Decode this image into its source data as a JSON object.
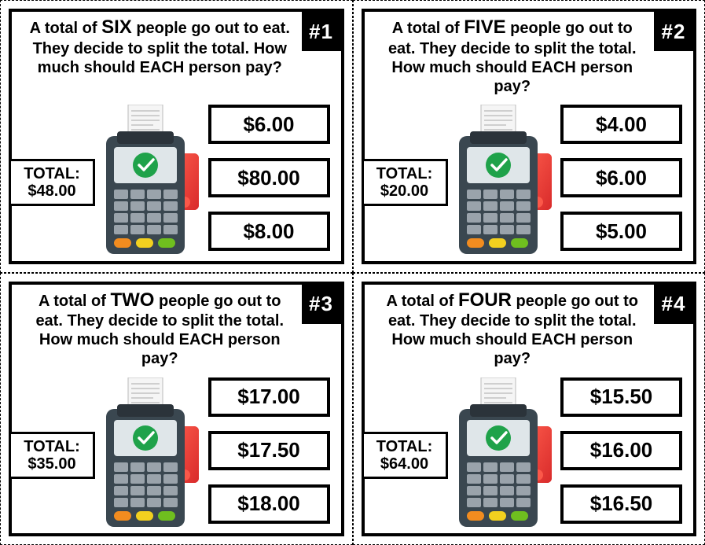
{
  "cards": [
    {
      "num": "#1",
      "q_pre": "A total of ",
      "q_em": "SIX",
      "q_post": " people go out to eat. They decide to split the total. How much should EACH person pay?",
      "total_label": "TOTAL:",
      "total_value": "$48.00",
      "answers": [
        "$6.00",
        "$80.00",
        "$8.00"
      ]
    },
    {
      "num": "#2",
      "q_pre": "A total of ",
      "q_em": "FIVE",
      "q_post": " people go out to eat. They decide to split the total. How much should EACH person pay?",
      "total_label": "TOTAL:",
      "total_value": "$20.00",
      "answers": [
        "$4.00",
        "$6.00",
        "$5.00"
      ]
    },
    {
      "num": "#3",
      "q_pre": "A total of ",
      "q_em": "TWO",
      "q_post": " people go out to eat. They decide to split the total. How much should EACH person pay?",
      "total_label": "TOTAL:",
      "total_value": "$35.00",
      "answers": [
        "$17.00",
        "$17.50",
        "$18.00"
      ]
    },
    {
      "num": "#4",
      "q_pre": "A total of ",
      "q_em": "FOUR",
      "q_post": " people go out to eat. They decide to split the total. How much should EACH person pay?",
      "total_label": "TOTAL:",
      "total_value": "$64.00",
      "answers": [
        "$15.50",
        "$16.00",
        "$16.50"
      ]
    }
  ],
  "colors": {
    "border": "#000000",
    "bg": "#ffffff",
    "terminal_body": "#3a4750",
    "terminal_screen": "#dfe6e9",
    "check_green": "#1fa24a",
    "card_red1": "#ff5e4d",
    "card_red2": "#d92b2b",
    "btn_orange": "#f28c1f",
    "btn_yellow": "#f2d01f",
    "btn_green": "#6fbf1f",
    "receipt": "#f5f5f5",
    "receipt_line": "#cfcfcf",
    "key": "#9aa3ab"
  }
}
